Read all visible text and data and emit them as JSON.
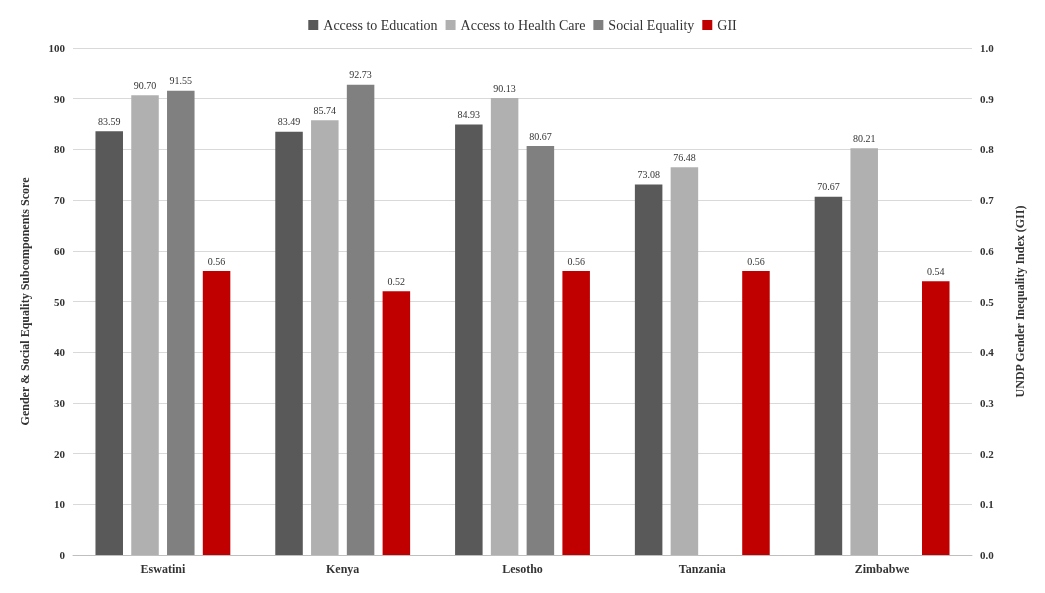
{
  "chart_data": {
    "type": "bar",
    "categories": [
      "Eswatini",
      "Kenya",
      "Lesotho",
      "Tanzania",
      "Zimbabwe"
    ],
    "ylabel": "Gender & Social Equality Subcomponents Score",
    "y2label": "UNDP Gender Inequality Index (GII)",
    "ylim": [
      0,
      100
    ],
    "yticks": [
      0,
      10,
      20,
      30,
      40,
      50,
      60,
      70,
      80,
      90,
      100
    ],
    "y2lim": [
      0,
      1
    ],
    "y2ticks": [
      {
        "value": 0,
        "label": "0.0"
      },
      0.1,
      0.2,
      0.3,
      0.4,
      0.5,
      0.6,
      0.7,
      0.8,
      0.9,
      {
        "value": 1,
        "label": "1.0"
      }
    ],
    "grid": "y",
    "legend": "top",
    "series": [
      {
        "name": "Access to Education",
        "color": "#595959",
        "values": [
          83.59,
          83.49,
          84.93,
          73.08,
          70.67
        ],
        "value_labels": [
          "83.59",
          "83.49",
          "84.93",
          "73.08",
          "70.67"
        ]
      },
      {
        "name": "Access to Health Care",
        "color": "#b0b0b0",
        "values": [
          90.7,
          85.74,
          90.13,
          76.48,
          80.21
        ],
        "value_labels": [
          "90.70",
          "85.74",
          "90.13",
          "76.48",
          "80.21"
        ]
      },
      {
        "name": "Social Equality",
        "color": "#808080",
        "values": [
          91.55,
          92.73,
          80.67,
          null,
          null
        ],
        "value_labels": [
          "91.55",
          "92.73",
          "80.67",
          null,
          null
        ]
      },
      {
        "name": "GII",
        "color": "#c00000",
        "axis": "y2",
        "values": [
          0.56,
          0.52,
          0.56,
          0.56,
          0.54
        ],
        "value_labels": [
          "0.56",
          "0.52",
          "0.56",
          "0.56",
          "0.54"
        ]
      }
    ]
  }
}
